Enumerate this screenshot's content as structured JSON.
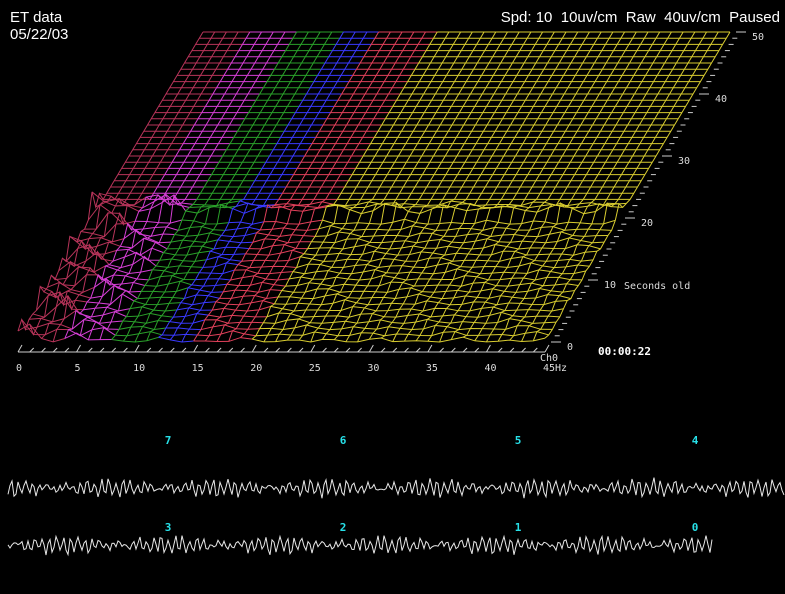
{
  "header": {
    "title": "ET data",
    "date": "05/22/03",
    "status": "Spd: 10  10uv/cm  Raw  40uv/cm  Paused"
  },
  "spectrum": {
    "x_axis": {
      "ticks": [
        0,
        5,
        10,
        15,
        20,
        25,
        30,
        35,
        40,
        "45Hz"
      ],
      "channel": "Ch0"
    },
    "time_axis": {
      "ticks": [
        0,
        10,
        20,
        30,
        40,
        50
      ],
      "label": "Seconds old"
    },
    "clock": "00:00:22"
  },
  "channels": {
    "labels": [
      "7",
      "6",
      "5",
      "4",
      "3",
      "2",
      "1",
      "0"
    ]
  }
}
